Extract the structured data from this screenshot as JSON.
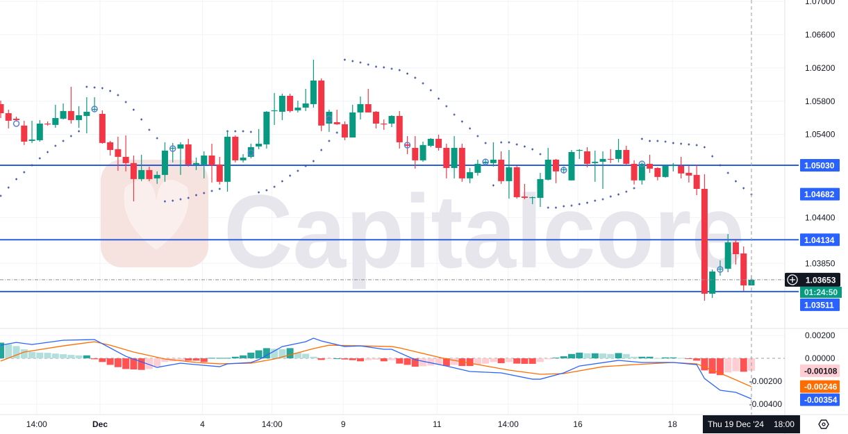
{
  "chart_data": {
    "type": "candlestick",
    "watermark": "Capitalcore",
    "colors": {
      "up": "#089981",
      "down": "#f23645",
      "hist_up_strong": "#26a69a",
      "hist_up_weak": "#b2dfdb",
      "hist_down_strong": "#ff5252",
      "hist_down_weak": "#ffcdd2",
      "macd_line": "#2962ff",
      "signal_line": "#ff6d00",
      "level_line": "#2b5fd9",
      "psar": "#3b4fa0"
    },
    "price_axis": {
      "ylim": [
        1.03076,
        1.07017
      ],
      "ticks": [
        "1.07000",
        "1.06600",
        "1.06200",
        "1.05800",
        "1.05400",
        "1.04400",
        "1.03850"
      ]
    },
    "horizontal_levels": [
      1.0503,
      1.04134,
      1.03511
    ],
    "price_labels": [
      {
        "text": "1.05030",
        "value": 1.0503,
        "bg": "#2962ff",
        "fg": "#ffffff"
      },
      {
        "text": "1.04682",
        "value": 1.04682,
        "bg": "#2962ff",
        "fg": "#ffffff"
      },
      {
        "text": "1.04134",
        "value": 1.04134,
        "bg": "#2962ff",
        "fg": "#ffffff"
      },
      {
        "text": "1.03511",
        "value": 1.03511,
        "bg": "#2962ff",
        "fg": "#ffffff"
      }
    ],
    "last_price": {
      "text": "1.03653",
      "value": 1.03653,
      "countdown": "01:24:50"
    },
    "candles_ohlc": [
      [
        1.05765,
        1.05807,
        1.05598,
        1.05656
      ],
      [
        1.05656,
        1.05698,
        1.05473,
        1.05565
      ],
      [
        1.0559,
        1.05615,
        1.05557,
        1.05573
      ],
      [
        1.05507,
        1.05565,
        1.05273,
        1.05314
      ],
      [
        1.05323,
        1.05565,
        1.05298,
        1.05339
      ],
      [
        1.05331,
        1.05573,
        1.05314,
        1.05531
      ],
      [
        1.05531,
        1.05557,
        1.05507,
        1.05523
      ],
      [
        1.05515,
        1.05757,
        1.05481,
        1.05598
      ],
      [
        1.0559,
        1.05773,
        1.05581,
        1.05682
      ],
      [
        1.05682,
        1.05974,
        1.05531,
        1.05573
      ],
      [
        1.05573,
        1.0574,
        1.05481,
        1.05631
      ],
      [
        1.05623,
        1.05849,
        1.05414,
        1.05673
      ],
      [
        1.05698,
        1.05849,
        1.05682,
        1.05707
      ],
      [
        1.05648,
        1.0569,
        1.05289,
        1.05298
      ],
      [
        1.05306,
        1.05323,
        1.05147,
        1.05214
      ],
      [
        1.05223,
        1.05373,
        1.04964,
        1.05131
      ],
      [
        1.05131,
        1.05389,
        1.04956,
        1.05056
      ],
      [
        1.05056,
        1.05147,
        1.04596,
        1.04864
      ],
      [
        1.04864,
        1.05156,
        1.04839,
        1.04972
      ],
      [
        1.04972,
        1.05014,
        1.04839,
        1.04864
      ],
      [
        1.04872,
        1.04956,
        1.04806,
        1.04914
      ],
      [
        1.04914,
        1.05306,
        1.04831,
        1.05206
      ],
      [
        1.05231,
        1.05298,
        1.05064,
        1.05239
      ],
      [
        1.05231,
        1.05306,
        1.04914,
        1.05281
      ],
      [
        1.05281,
        1.05348,
        1.05014,
        1.05039
      ],
      [
        1.05039,
        1.05122,
        1.04972,
        1.05056
      ],
      [
        1.05039,
        1.05197,
        1.04872,
        1.05147
      ],
      [
        1.05147,
        1.05289,
        1.04822,
        1.05031
      ],
      [
        1.05039,
        1.05131,
        1.04798,
        1.04831
      ],
      [
        1.04831,
        1.05448,
        1.04713,
        1.05373
      ],
      [
        1.05373,
        1.05389,
        1.05064,
        1.05089
      ],
      [
        1.05089,
        1.05164,
        1.05064,
        1.05122
      ],
      [
        1.05131,
        1.05289,
        1.05114,
        1.05248
      ],
      [
        1.05256,
        1.05465,
        1.05223,
        1.05289
      ],
      [
        1.05281,
        1.05682,
        1.05231,
        1.05673
      ],
      [
        1.05682,
        1.05899,
        1.05515,
        1.0569
      ],
      [
        1.05673,
        1.0589,
        1.05573,
        1.05865
      ],
      [
        1.05865,
        1.0589,
        1.05665,
        1.05682
      ],
      [
        1.0569,
        1.05807,
        1.05665,
        1.05723
      ],
      [
        1.05723,
        1.05949,
        1.05682,
        1.05773
      ],
      [
        1.05765,
        1.06299,
        1.05723,
        1.06049
      ],
      [
        1.06049,
        1.06074,
        1.0544,
        1.05507
      ],
      [
        1.05531,
        1.05698,
        1.05431,
        1.05673
      ],
      [
        1.05548,
        1.05698,
        1.05515,
        1.05523
      ],
      [
        1.05523,
        1.05557,
        1.05331,
        1.05364
      ],
      [
        1.05364,
        1.05757,
        1.05364,
        1.05665
      ],
      [
        1.05665,
        1.05857,
        1.05581,
        1.05765
      ],
      [
        1.05765,
        1.05949,
        1.05665,
        1.05665
      ],
      [
        1.05673,
        1.05682,
        1.05473,
        1.05531
      ],
      [
        1.05531,
        1.05581,
        1.05456,
        1.05523
      ],
      [
        1.05531,
        1.05631,
        1.0549,
        1.05623
      ],
      [
        1.05623,
        1.05682,
        1.05231,
        1.05306
      ],
      [
        1.05281,
        1.05381,
        1.05164,
        1.05264
      ],
      [
        1.05239,
        1.05381,
        1.04989,
        1.05089
      ],
      [
        1.05089,
        1.05314,
        1.05072,
        1.05273
      ],
      [
        1.05264,
        1.05356,
        1.05248,
        1.05348
      ],
      [
        1.05348,
        1.05398,
        1.05206,
        1.05239
      ],
      [
        1.05239,
        1.05289,
        1.04872,
        1.04997
      ],
      [
        1.04997,
        1.05381,
        1.04872,
        1.05239
      ],
      [
        1.05239,
        1.05289,
        1.04831,
        1.04872
      ],
      [
        1.04872,
        1.04997,
        1.04814,
        1.04947
      ],
      [
        1.04939,
        1.05097,
        1.04906,
        1.05047
      ],
      [
        1.05056,
        1.05097,
        1.05031,
        1.05072
      ],
      [
        1.05056,
        1.05306,
        1.05014,
        1.05097
      ],
      [
        1.05097,
        1.05197,
        1.04806,
        1.04839
      ],
      [
        1.04839,
        1.05214,
        1.04629,
        1.05006
      ],
      [
        1.05006,
        1.05022,
        1.04629,
        1.04646
      ],
      [
        1.04654,
        1.04806,
        1.04621,
        1.04638
      ],
      [
        1.04638,
        1.04654,
        1.04562,
        1.04646
      ],
      [
        1.04638,
        1.04939,
        1.04529,
        1.04864
      ],
      [
        1.04856,
        1.05239,
        1.04848,
        1.05097
      ],
      [
        1.05097,
        1.05106,
        1.04814,
        1.04956
      ],
      [
        1.04972,
        1.05014,
        1.04931,
        1.04981
      ],
      [
        1.04848,
        1.05214,
        1.04848,
        1.05189
      ],
      [
        1.05206,
        1.05223,
        1.05106,
        1.05214
      ],
      [
        1.05197,
        1.05248,
        1.05006,
        1.05047
      ],
      [
        1.05056,
        1.05206,
        1.04831,
        1.05072
      ],
      [
        1.05072,
        1.05197,
        1.04746,
        1.05106
      ],
      [
        1.05106,
        1.05223,
        1.05056,
        1.05097
      ],
      [
        1.05106,
        1.05348,
        1.05064,
        1.05214
      ],
      [
        1.05214,
        1.05264,
        1.05031,
        1.05047
      ],
      [
        1.05047,
        1.05089,
        1.04798,
        1.04848
      ],
      [
        1.04848,
        1.05064,
        1.04798,
        1.05047
      ],
      [
        1.05047,
        1.05156,
        1.04939,
        1.04989
      ],
      [
        1.04997,
        1.05006,
        1.04848,
        1.04889
      ],
      [
        1.04889,
        1.05031,
        1.04881,
        1.05022
      ],
      [
        1.05022,
        1.05056,
        1.04956,
        1.05031
      ],
      [
        1.05022,
        1.05131,
        1.04872,
        1.04931
      ],
      [
        1.04939,
        1.05022,
        1.04822,
        1.04906
      ],
      [
        1.04914,
        1.05031,
        1.04671,
        1.04746
      ],
      [
        1.04746,
        1.04922,
        1.03401,
        1.03485
      ],
      [
        1.03485,
        1.03777,
        1.03435,
        1.03752
      ],
      [
        1.03777,
        1.03886,
        1.03702,
        1.03786
      ],
      [
        1.03786,
        1.04203,
        1.03744,
        1.04103
      ],
      [
        1.04103,
        1.04145,
        1.03836,
        1.03961
      ],
      [
        1.03969,
        1.04053,
        1.03518,
        1.03585
      ],
      [
        1.03585,
        1.03702,
        1.03585,
        1.03653
      ]
    ],
    "parabolic_sar": [
      1.04662,
      1.04762,
      1.04863,
      1.04946,
      1.0503,
      1.05113,
      1.05188,
      1.05264,
      1.05322,
      1.05381,
      1.05439,
      1.05973,
      1.05965,
      1.05957,
      1.05923,
      1.05873,
      1.0579,
      1.05698,
      1.05581,
      1.05456,
      1.05355,
      1.04596,
      1.04604,
      1.04621,
      1.04637,
      1.04671,
      1.04696,
      1.04721,
      1.04746,
      1.05439,
      1.05439,
      1.05439,
      1.05431,
      1.04704,
      1.04729,
      1.04771,
      1.04838,
      1.04905,
      1.04963,
      1.05021,
      1.0508,
      1.05213,
      1.05322,
      1.05422,
      1.06299,
      1.06282,
      1.06266,
      1.06241,
      1.06215,
      1.06207,
      1.0619,
      1.06174,
      1.06132,
      1.06082,
      1.06015,
      1.05932,
      1.05831,
      1.0574,
      1.05639,
      1.05556,
      1.05472,
      1.05381,
      1.05297,
      1.04788,
      1.05305,
      1.05305,
      1.0528,
      1.05255,
      1.05222,
      1.05163,
      1.0452,
      1.0452,
      1.04537,
      1.04545,
      1.04562,
      1.04579,
      1.04604,
      1.04621,
      1.04654,
      1.04679,
      1.04712,
      1.04754,
      1.05347,
      1.05322,
      1.05322,
      1.05314,
      1.05297,
      1.05289,
      1.0528,
      1.05272,
      1.05247,
      1.05138,
      1.0503,
      1.04938,
      1.04838,
      1.04754,
      1.04679
    ],
    "circle_markers": [
      {
        "bar": 2,
        "price": 1.05531
      },
      {
        "bar": 12,
        "price": 1.05706
      },
      {
        "bar": 22,
        "price": 1.0523
      },
      {
        "bar": 32,
        "price": 1.0518
      },
      {
        "bar": 42,
        "price": 1.05589
      },
      {
        "bar": 52,
        "price": 1.05272
      },
      {
        "bar": 62,
        "price": 1.05071
      },
      {
        "bar": 72,
        "price": 1.04971
      },
      {
        "bar": 82,
        "price": 1.05046
      },
      {
        "bar": 92,
        "price": 1.03777
      }
    ],
    "macd": {
      "ylim": [
        -0.00491,
        0.00255
      ],
      "ticks": [
        "0.00200",
        "0.00000",
        "-0.00200",
        "-0.00400"
      ],
      "histogram": [
        0.00137,
        0.00123,
        0.00107,
        0.00079,
        0.00057,
        0.0005,
        0.00048,
        0.00042,
        0.00036,
        0.0003,
        0.00026,
        0.00026,
        -8e-05,
        -0.00032,
        -0.00057,
        -0.00077,
        -0.00093,
        -0.00097,
        -0.00101,
        -0.00093,
        -0.00069,
        -0.00032,
        -0.00026,
        -0.0002,
        -0.0002,
        -0.0002,
        -0.00032,
        4e-05,
        4e-05,
        4e-05,
        0.00014,
        0.00026,
        0.0005,
        0.0007,
        0.00089,
        0.00083,
        0.0008,
        0.00089,
        0.0005,
        0.0004,
        0.00014,
        -0.00014,
        -6e-05,
        0.0,
        -0.0001,
        -0.00016,
        -0.00026,
        -0.00016,
        -0.00012,
        -0.00026,
        -0.00016,
        -0.00046,
        -0.00057,
        -0.00073,
        -0.00069,
        -0.00063,
        -0.00053,
        -0.00067,
        -0.00057,
        -0.00067,
        -0.00067,
        -0.00053,
        -0.00046,
        -0.00032,
        -0.00042,
        -0.00032,
        -0.00046,
        -0.00048,
        -0.00048,
        -0.00032,
        -8e-05,
        6e-05,
        0.00018,
        0.00038,
        0.0005,
        0.00044,
        0.00044,
        0.00042,
        0.00038,
        0.00046,
        0.00038,
        0.00014,
        0.00014,
        0.00014,
        2e-05,
        8e-05,
        8e-05,
        4e-05,
        -4e-05,
        -0.0002,
        -0.00105,
        -0.00133,
        -0.00147,
        -0.00123,
        -0.00113,
        -0.00117,
        -0.00108
      ],
      "macd_line": [
        [
          0,
          0.00115
        ],
        [
          2,
          0.00139
        ],
        [
          4,
          0.00121
        ],
        [
          8,
          0.00158
        ],
        [
          12,
          0.00164
        ],
        [
          16,
          0.00018
        ],
        [
          20,
          -0.00079
        ],
        [
          23,
          -0.00042
        ],
        [
          25,
          -0.00055
        ],
        [
          28,
          -0.00073
        ],
        [
          29,
          -0.00048
        ],
        [
          32,
          -0.00036
        ],
        [
          33,
          -0.00012
        ],
        [
          36,
          0.00103
        ],
        [
          39,
          0.00145
        ],
        [
          40,
          0.00176
        ],
        [
          41,
          0.00152
        ],
        [
          44,
          0.00103
        ],
        [
          46,
          0.00109
        ],
        [
          49,
          0.00079
        ],
        [
          50,
          0.00079
        ],
        [
          53,
          -0.00012
        ],
        [
          57,
          -0.00067
        ],
        [
          60,
          -0.00115
        ],
        [
          64,
          -0.00127
        ],
        [
          68,
          -0.00182
        ],
        [
          69,
          -0.00182
        ],
        [
          72,
          -0.00127
        ],
        [
          74,
          -0.00067
        ],
        [
          79,
          -0.00018
        ],
        [
          82,
          -0.00036
        ],
        [
          86,
          -0.00036
        ],
        [
          89,
          -0.00055
        ],
        [
          90,
          -0.00176
        ],
        [
          92,
          -0.00279
        ],
        [
          94,
          -0.00297
        ],
        [
          96,
          -0.00354
        ]
      ],
      "signal_line": [
        [
          0,
          -0.00024
        ],
        [
          3,
          0.00055
        ],
        [
          8,
          0.00109
        ],
        [
          12,
          0.00145
        ],
        [
          14,
          0.00115
        ],
        [
          17,
          0.00055
        ],
        [
          21,
          -6e-05
        ],
        [
          25,
          -0.00036
        ],
        [
          28,
          -0.00048
        ],
        [
          32,
          -0.00042
        ],
        [
          35,
          -6e-05
        ],
        [
          40,
          0.00085
        ],
        [
          42,
          0.00115
        ],
        [
          46,
          0.00109
        ],
        [
          50,
          0.00103
        ],
        [
          51,
          0.00091
        ],
        [
          57,
          -6e-05
        ],
        [
          65,
          -0.00103
        ],
        [
          69,
          -0.00139
        ],
        [
          72,
          -0.00133
        ],
        [
          77,
          -0.00073
        ],
        [
          81,
          -0.00055
        ],
        [
          86,
          -0.00036
        ],
        [
          89,
          -0.00048
        ],
        [
          93,
          -0.00158
        ],
        [
          96,
          -0.00248
        ]
      ],
      "labels": [
        {
          "text": "-0.00108",
          "value": -0.00108,
          "bg": "#ffcdd2",
          "fg": "#131722"
        },
        {
          "text": "-0.00246",
          "value": -0.00246,
          "bg": "#ff6d00",
          "fg": "#ffffff"
        },
        {
          "text": "-0.00354",
          "value": -0.00354,
          "bg": "#2962ff",
          "fg": "#ffffff"
        }
      ]
    },
    "time_axis": {
      "labels": [
        {
          "bar": 4.6,
          "text": "14:00"
        },
        {
          "bar": 12.7,
          "text": "Dec",
          "bold": true
        },
        {
          "bar": 25.8,
          "text": "4"
        },
        {
          "bar": 34.7,
          "text": "14:00"
        },
        {
          "bar": 43.8,
          "text": "9"
        },
        {
          "bar": 55.8,
          "text": "11"
        },
        {
          "bar": 64.9,
          "text": "14:00"
        },
        {
          "bar": 73.8,
          "text": "16"
        },
        {
          "bar": 85.9,
          "text": "18"
        }
      ],
      "crosshair": {
        "bar": 96,
        "date": "Thu 19 Dec '24",
        "time": "18:00"
      }
    }
  }
}
